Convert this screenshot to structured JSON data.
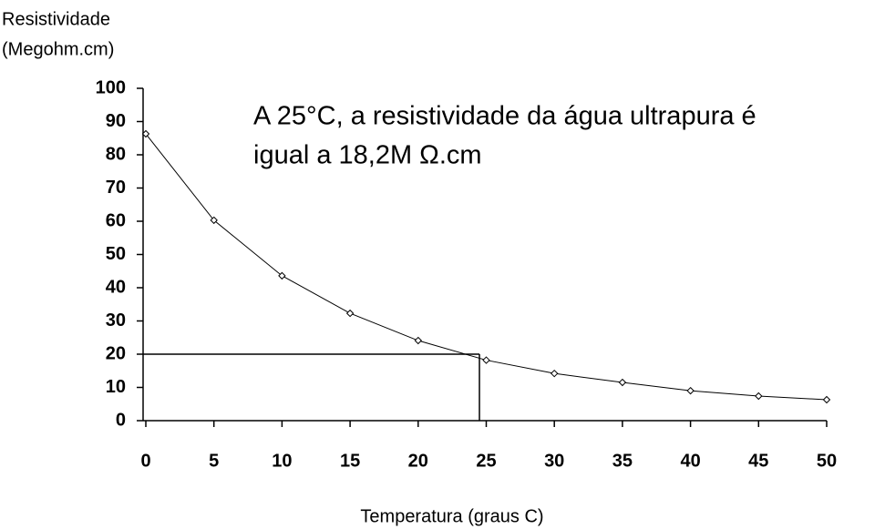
{
  "chart_data": {
    "type": "line",
    "ylabel": [
      "Resistividade",
      "(Megohm.cm)"
    ],
    "xlabel": "Temperatura (graus C)",
    "annotation": [
      "A 25°C, a resistividade da água ultrapura é",
      "igual a 18,2M Ω.cm"
    ],
    "x": [
      0,
      5,
      10,
      15,
      20,
      25,
      30,
      35,
      40,
      45,
      50
    ],
    "series": [
      {
        "color": "#000000",
        "values": [
          86.3,
          60.3,
          43.6,
          32.3,
          24.1,
          18.2,
          14.2,
          11.5,
          9,
          7.4,
          6.3
        ]
      }
    ],
    "guide_lines": [
      {
        "x": 24.5,
        "y": 20
      }
    ],
    "xlim": [
      0,
      50
    ],
    "xticks": [
      0,
      5,
      10,
      15,
      20,
      25,
      30,
      35,
      40,
      45,
      50
    ],
    "ylim": [
      0,
      100
    ],
    "yticks": [
      0,
      10,
      20,
      30,
      40,
      50,
      60,
      70,
      80,
      90,
      100
    ],
    "grid": false
  }
}
